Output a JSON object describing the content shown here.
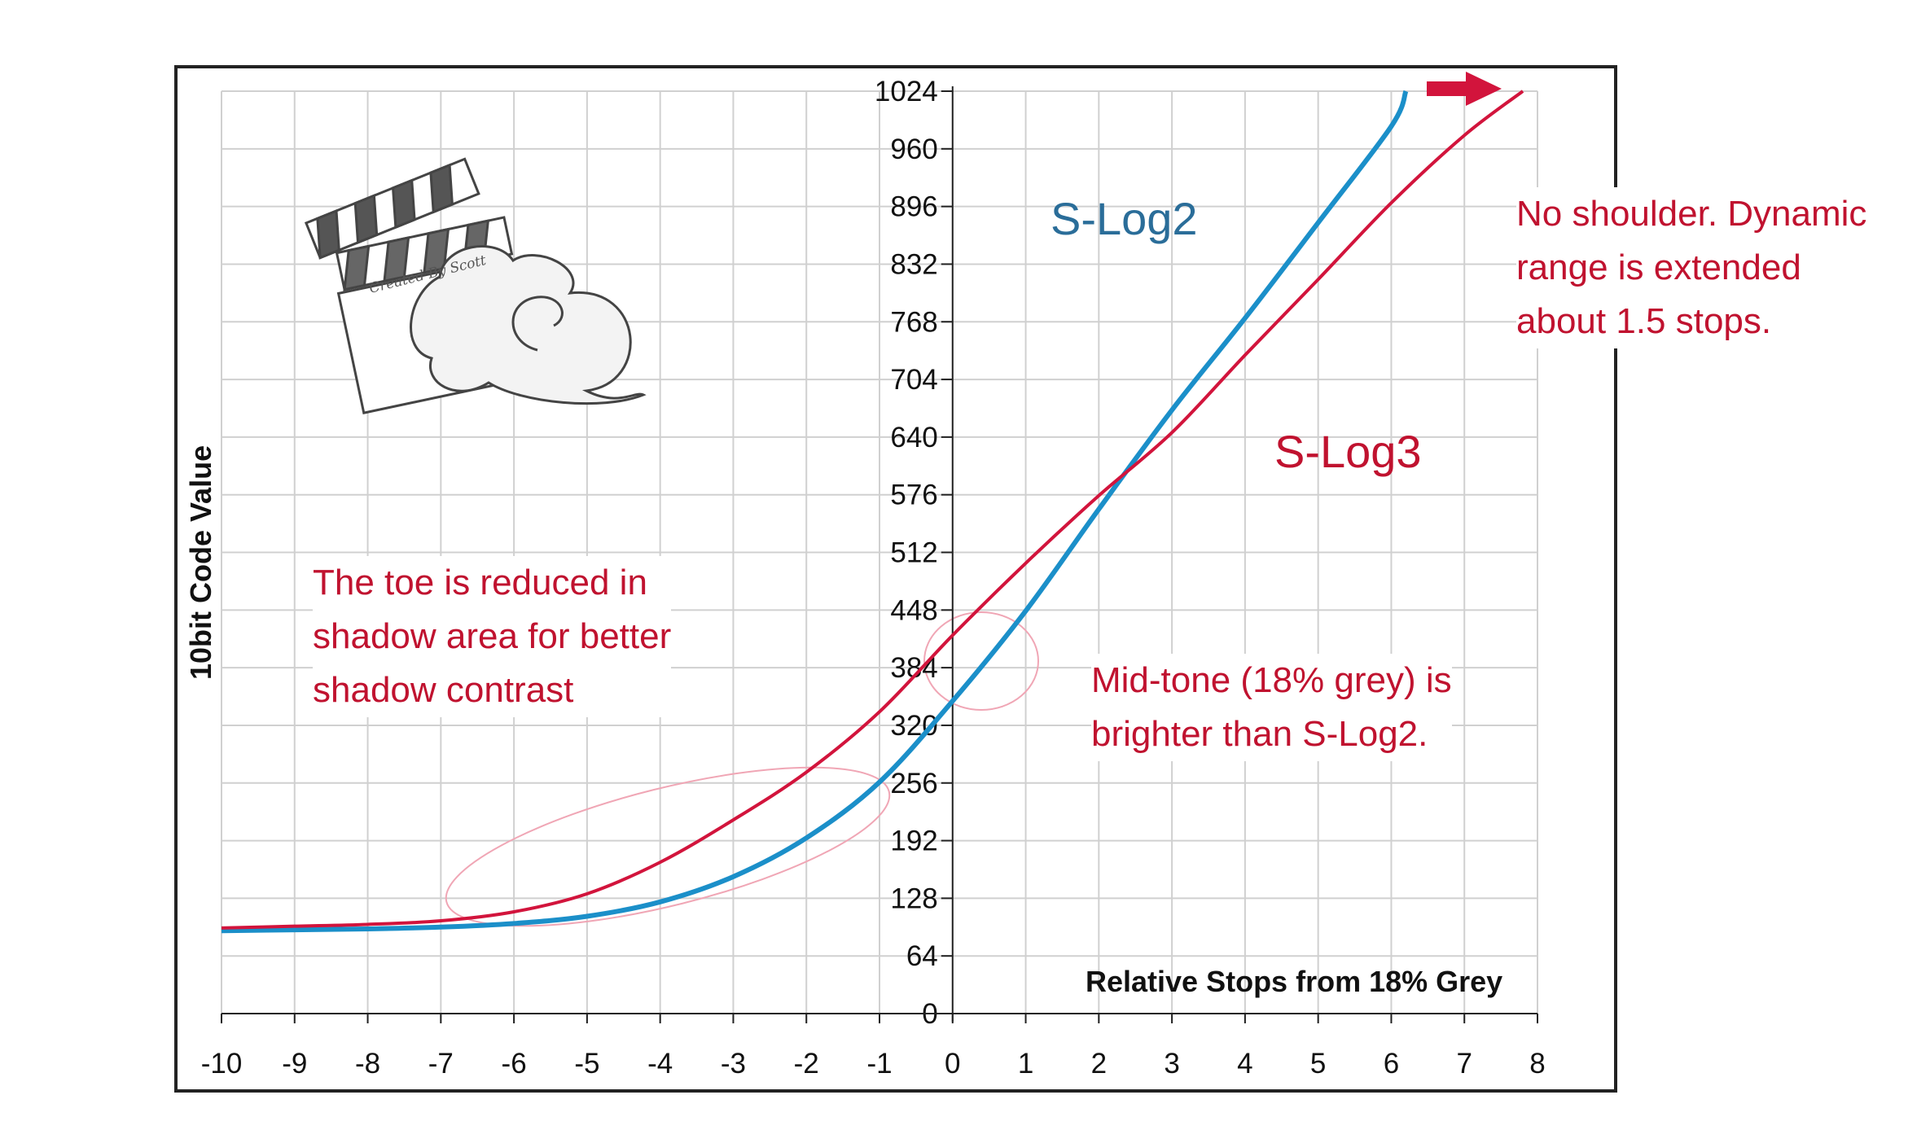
{
  "chart_data": {
    "type": "line",
    "xlabel": "Relative Stops from 18% Grey",
    "ylabel": "10bit Code Value",
    "xlim": [
      -10,
      8
    ],
    "ylim": [
      0,
      1024
    ],
    "x_ticks": [
      "-10",
      "-9",
      "-8",
      "-7",
      "-6",
      "-5",
      "-4",
      "-3",
      "-2",
      "-1",
      "0",
      "1",
      "2",
      "3",
      "4",
      "5",
      "6",
      "7",
      "8"
    ],
    "y_ticks": [
      "0",
      "64",
      "128",
      "192",
      "256",
      "320",
      "384",
      "448",
      "512",
      "576",
      "640",
      "704",
      "768",
      "832",
      "896",
      "960",
      "1024"
    ],
    "grid": true,
    "series": [
      {
        "name": "S-Log2",
        "color": "#1b8fc9",
        "x": [
          -10,
          -9,
          -8,
          -7,
          -6,
          -5,
          -4,
          -3,
          -2,
          -1,
          0,
          1,
          2,
          3,
          4,
          5,
          6,
          6.2
        ],
        "y": [
          92,
          93,
          94,
          96,
          100,
          108,
          124,
          152,
          195,
          257,
          347,
          447,
          560,
          670,
          772,
          878,
          985,
          1024
        ]
      },
      {
        "name": "S-Log3",
        "color": "#d2143c",
        "x": [
          -10,
          -9,
          -8,
          -7,
          -6,
          -5,
          -4,
          -3,
          -2,
          -1,
          0,
          1,
          2,
          3,
          4,
          5,
          6,
          7,
          7.8
        ],
        "y": [
          95,
          97,
          99,
          103,
          113,
          133,
          168,
          215,
          268,
          335,
          420,
          500,
          575,
          645,
          731,
          815,
          900,
          975,
          1024
        ]
      }
    ],
    "annotations": [
      "No shoulder. Dynamic\nrange is extended\nabout 1.5 stops.",
      "The toe is reduced in\nshadow area for better\nshadow contrast",
      "Mid-tone (18% grey) is\nbrighter than S-Log2."
    ]
  },
  "logo": {
    "text": "Created By Scott"
  },
  "colors": {
    "slog2": "#1b8fc9",
    "slog3": "#d2143c",
    "slog2_label": "#2a6d99",
    "note": "#c0122f",
    "grid": "#d0d0d0"
  }
}
